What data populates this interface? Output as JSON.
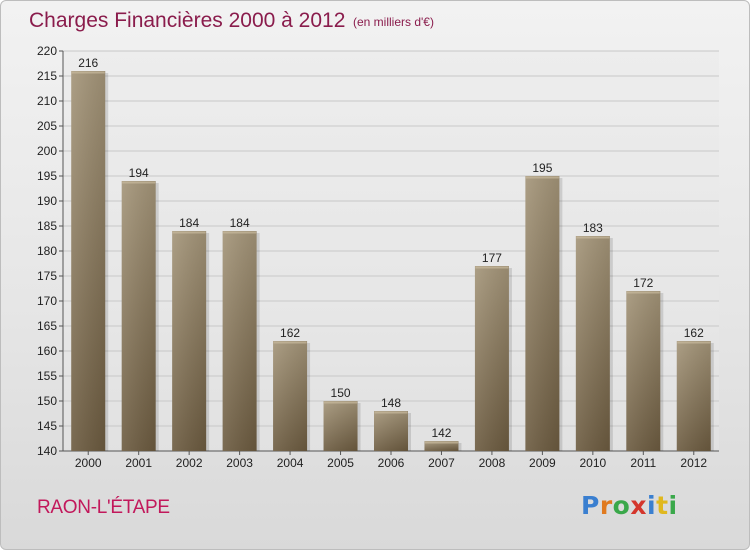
{
  "header": {
    "title": "Charges Financières 2000 à 2012",
    "unit_note": "(en milliers d'€)"
  },
  "footer": {
    "commune": "RAON-L'ÉTAPE",
    "logo_letters": [
      {
        "char": "P",
        "color": "#3a7fd0"
      },
      {
        "char": "r",
        "color": "#e07a1f"
      },
      {
        "char": "o",
        "color": "#3aa84a"
      },
      {
        "char": "x",
        "color": "#d4362c"
      },
      {
        "char": "i",
        "color": "#3a7fd0"
      },
      {
        "char": "t",
        "color": "#e0b81f"
      },
      {
        "char": "i",
        "color": "#3aa84a"
      }
    ]
  },
  "colors": {
    "bar_top": "#a39478",
    "bar_bottom": "#6b5a3f",
    "grid": "#c8c8c8",
    "axis_text": "#222222"
  },
  "chart_data": {
    "type": "bar",
    "title": "Charges Financières 2000 à 2012",
    "subtitle": "(en milliers d'€)",
    "categories": [
      "2000",
      "2001",
      "2002",
      "2003",
      "2004",
      "2005",
      "2006",
      "2007",
      "2008",
      "2009",
      "2010",
      "2011",
      "2012"
    ],
    "values": [
      216,
      194,
      184,
      184,
      162,
      150,
      148,
      142,
      177,
      195,
      183,
      172,
      162
    ],
    "ylim": [
      140,
      220
    ],
    "yticks": [
      140,
      145,
      150,
      155,
      160,
      165,
      170,
      175,
      180,
      185,
      190,
      195,
      200,
      205,
      210,
      215,
      220
    ],
    "grid": true,
    "data_labels": true
  }
}
